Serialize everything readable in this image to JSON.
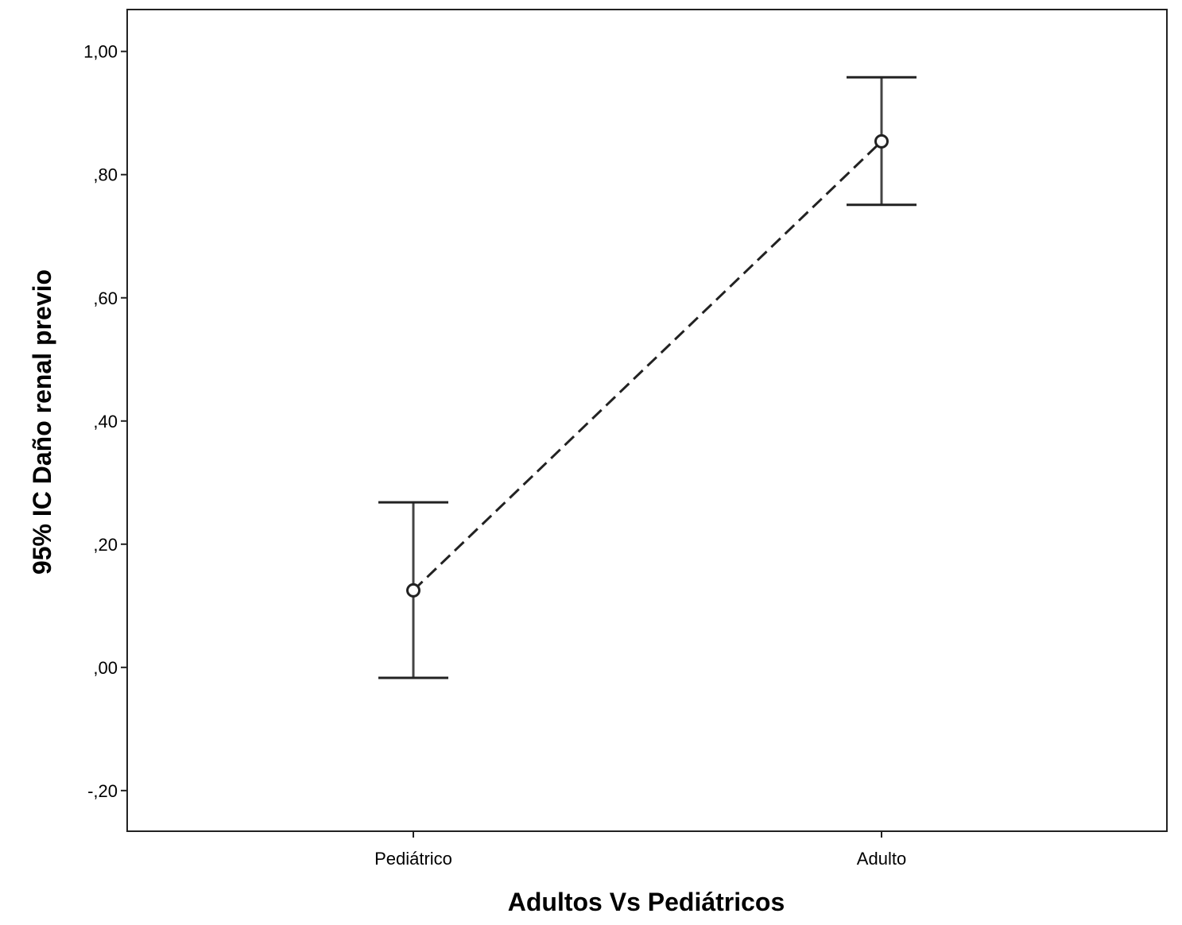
{
  "chart_data": {
    "type": "errorbar",
    "xlabel": "Adultos Vs Pediátricos",
    "ylabel": "95% IC Daño renal previo",
    "categories": [
      "Pediátrico",
      "Adulto"
    ],
    "y_ticks": [
      -0.2,
      0.0,
      0.2,
      0.4,
      0.6,
      0.8,
      1.0
    ],
    "y_tick_labels": [
      "-,20",
      ",00",
      ",20",
      ",40",
      ",60",
      ",80",
      "1,00"
    ],
    "ylim": [
      -0.266,
      1.068
    ],
    "series": [
      {
        "points": [
          {
            "category": "Pediátrico",
            "mean": 0.125,
            "lower": -0.017,
            "upper": 0.268
          },
          {
            "category": "Adulto",
            "mean": 0.854,
            "lower": 0.751,
            "upper": 0.958
          }
        ],
        "line_style": "dashed",
        "marker": "open-circle"
      }
    ],
    "grid": false,
    "legend": "none"
  }
}
